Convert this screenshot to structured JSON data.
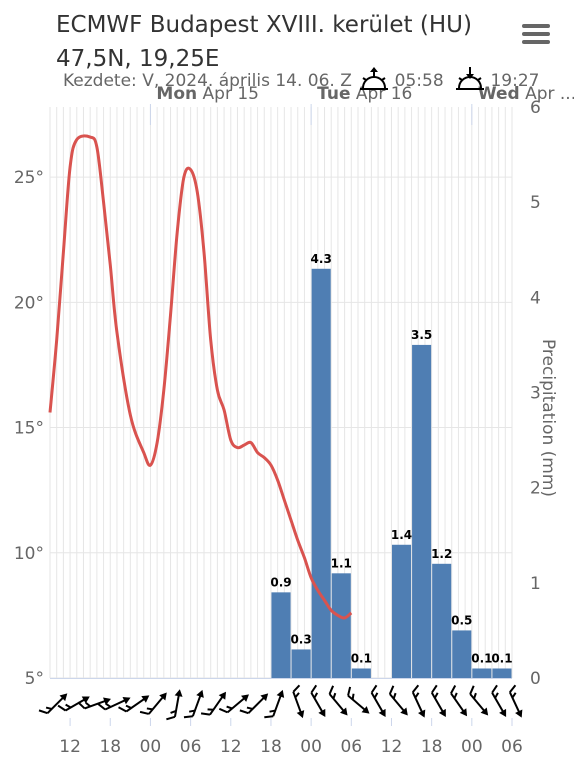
{
  "header": {
    "title_line1": "ECMWF Budapest XVIII. kerület (HU)",
    "title_line2": "47,5N, 19,25E",
    "start_label": "Kezdete: V, 2024. április 14. 06. Z",
    "sunrise": "05:58",
    "sunset": "19:27",
    "menu_icon": "hamburger-menu-icon",
    "sunrise_icon": "sunrise-icon",
    "sunset_icon": "sunset-icon"
  },
  "colors": {
    "temperature_line": "#d9534f",
    "precipitation_bar": "#4f7eb3",
    "grid": "#e6e6e6",
    "day_line": "#ccd6eb"
  },
  "days": [
    {
      "bold": "Mon",
      "rest": " Apr 15",
      "hour": 18
    },
    {
      "bold": "Tue",
      "rest": " Apr 16",
      "hour": 42
    },
    {
      "bold": "Wed",
      "rest": " Apr ...",
      "hour": 66
    }
  ],
  "chart_data": {
    "type": "line+bar",
    "x_unit": "hours since 2024-04-14 06Z",
    "x_range": [
      3,
      72
    ],
    "x_ticks": [
      {
        "hour": 6,
        "label": "12"
      },
      {
        "hour": 12,
        "label": "18"
      },
      {
        "hour": 18,
        "label": "00"
      },
      {
        "hour": 24,
        "label": "06"
      },
      {
        "hour": 30,
        "label": "12"
      },
      {
        "hour": 36,
        "label": "18"
      },
      {
        "hour": 42,
        "label": "00"
      },
      {
        "hour": 48,
        "label": "06"
      },
      {
        "hour": 54,
        "label": "12"
      },
      {
        "hour": 60,
        "label": "18"
      },
      {
        "hour": 66,
        "label": "00"
      },
      {
        "hour": 72,
        "label": "06"
      }
    ],
    "y_left": {
      "min": 5,
      "max": 27.8,
      "ticks": [
        5,
        10,
        15,
        20,
        25
      ],
      "unit": "°"
    },
    "y_right": {
      "min": 0,
      "max": 6,
      "ticks": [
        0,
        1,
        2,
        3,
        4,
        5,
        6
      ],
      "label": "Precipitation (mm)"
    },
    "temperature": [
      [
        3,
        15.6
      ],
      [
        4,
        18.5
      ],
      [
        5,
        22
      ],
      [
        6,
        25.4
      ],
      [
        7,
        26.5
      ],
      [
        9,
        26.6
      ],
      [
        10,
        26.2
      ],
      [
        11,
        24
      ],
      [
        12,
        21.5
      ],
      [
        13,
        18.8
      ],
      [
        15,
        15.5
      ],
      [
        17,
        14.0
      ],
      [
        18,
        13.5
      ],
      [
        19,
        14.4
      ],
      [
        20,
        16.5
      ],
      [
        21,
        19.5
      ],
      [
        22,
        22.8
      ],
      [
        23,
        25.0
      ],
      [
        24,
        25.3
      ],
      [
        25,
        24.4
      ],
      [
        26,
        22.0
      ],
      [
        27,
        18.5
      ],
      [
        28,
        16.5
      ],
      [
        29,
        15.7
      ],
      [
        30,
        14.5
      ],
      [
        31,
        14.2
      ],
      [
        32,
        14.3
      ],
      [
        33,
        14.4
      ],
      [
        34,
        14.0
      ],
      [
        35,
        13.8
      ],
      [
        36,
        13.5
      ],
      [
        37,
        12.9
      ],
      [
        38,
        12.1
      ],
      [
        39,
        11.3
      ],
      [
        40,
        10.5
      ],
      [
        41,
        9.8
      ],
      [
        42,
        9.0
      ],
      [
        43,
        8.5
      ],
      [
        44,
        8.1
      ],
      [
        45,
        7.7
      ],
      [
        46,
        7.5
      ],
      [
        47,
        7.4
      ],
      [
        48,
        7.6
      ]
    ],
    "precipitation": [
      {
        "start": 36,
        "end": 39,
        "value": 0.9,
        "label": "0.9"
      },
      {
        "start": 39,
        "end": 42,
        "value": 0.3,
        "label": "0.3"
      },
      {
        "start": 42,
        "end": 45,
        "value": 4.3,
        "label": "4.3"
      },
      {
        "start": 45,
        "end": 48,
        "value": 1.1,
        "label": "1.1"
      },
      {
        "start": 48,
        "end": 51,
        "value": 0.1,
        "label": "0.1"
      },
      {
        "start": 54,
        "end": 57,
        "value": 1.4,
        "label": "1.4"
      },
      {
        "start": 57,
        "end": 60,
        "value": 3.5,
        "label": "3.5"
      },
      {
        "start": 60,
        "end": 63,
        "value": 1.2,
        "label": "1.2"
      },
      {
        "start": 63,
        "end": 66,
        "value": 0.5,
        "label": "0.5"
      },
      {
        "start": 66,
        "end": 69,
        "value": 0.1,
        "label": "0.1"
      },
      {
        "start": 69,
        "end": 72,
        "value": 0.1,
        "label": "0.1"
      }
    ],
    "wind_barbs": [
      {
        "hour": 4,
        "dir": 225
      },
      {
        "hour": 7,
        "dir": 240
      },
      {
        "hour": 10,
        "dir": 250
      },
      {
        "hour": 13,
        "dir": 245
      },
      {
        "hour": 16,
        "dir": 235
      },
      {
        "hour": 19,
        "dir": 220
      },
      {
        "hour": 22,
        "dir": 190
      },
      {
        "hour": 25,
        "dir": 200
      },
      {
        "hour": 28,
        "dir": 215
      },
      {
        "hour": 31,
        "dir": 230
      },
      {
        "hour": 34,
        "dir": 225
      },
      {
        "hour": 37,
        "dir": 200
      },
      {
        "hour": 40,
        "dir": 340
      },
      {
        "hour": 43,
        "dir": 330
      },
      {
        "hour": 46,
        "dir": 320
      },
      {
        "hour": 49,
        "dir": 310
      },
      {
        "hour": 52,
        "dir": 330
      },
      {
        "hour": 55,
        "dir": 320
      },
      {
        "hour": 58,
        "dir": 335
      },
      {
        "hour": 61,
        "dir": 330
      },
      {
        "hour": 64,
        "dir": 325
      },
      {
        "hour": 67,
        "dir": 320
      },
      {
        "hour": 70,
        "dir": 330
      },
      {
        "hour": 72.5,
        "dir": 335
      }
    ],
    "grid": true,
    "legend": "none"
  }
}
